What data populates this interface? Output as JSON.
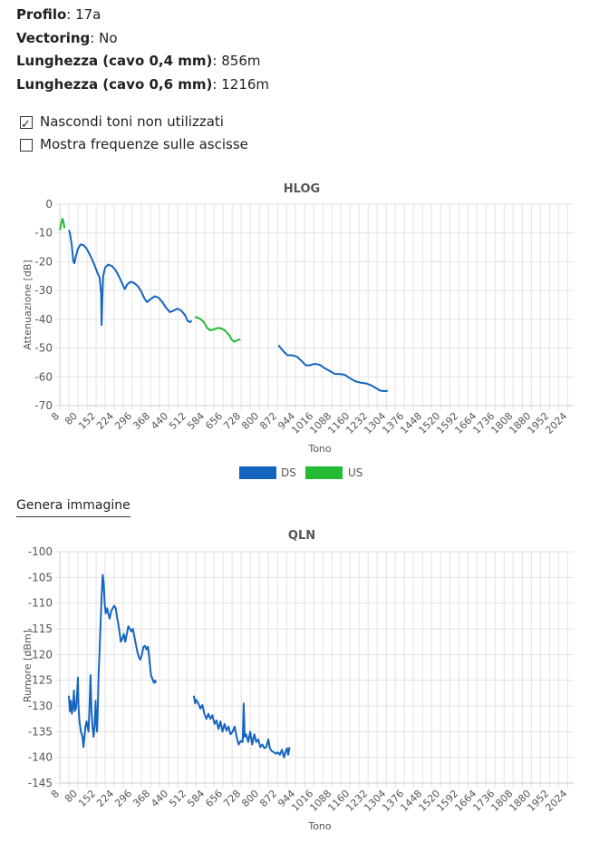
{
  "info": [
    {
      "label": "Profilo",
      "value": "17a"
    },
    {
      "label": "Vectoring",
      "value": "No"
    },
    {
      "label": "Lunghezza (cavo 0,4 mm)",
      "value": "856m"
    },
    {
      "label": "Lunghezza (cavo 0,6 mm)",
      "value": "1216m"
    }
  ],
  "options": [
    {
      "label": "Nascondi toni non utilizzati",
      "checked": true
    },
    {
      "label": "Mostra frequenze sulle ascisse",
      "checked": false
    }
  ],
  "generate_button": "Genera immagine",
  "chart_data": [
    {
      "type": "line",
      "title": "HLOG",
      "xlabel": "Tono",
      "ylabel": "Attenuazione [dB]",
      "xlim": [
        8,
        2048
      ],
      "ylim": [
        -70,
        0
      ],
      "xticks": [
        "8",
        "80",
        "152",
        "224",
        "296",
        "368",
        "440",
        "512",
        "584",
        "656",
        "728",
        "800",
        "872",
        "944",
        "1016",
        "1088",
        "1160",
        "1232",
        "1304",
        "1376",
        "1448",
        "1520",
        "1592",
        "1664",
        "1736",
        "1808",
        "1880",
        "1952",
        "2024"
      ],
      "yticks": [
        "0",
        "-10",
        "-20",
        "-30",
        "-40",
        "-50",
        "-60",
        "-70"
      ],
      "grid": true,
      "legend": "bottom",
      "series": [
        {
          "name": "DS",
          "color": "#1565c0",
          "segments": [
            [
              [
                44,
                -9
              ],
              [
                48,
                -10
              ],
              [
                55,
                -14
              ],
              [
                62,
                -20
              ],
              [
                66,
                -20.5
              ],
              [
                72,
                -18
              ],
              [
                80,
                -15.5
              ],
              [
                90,
                -14
              ],
              [
                102,
                -14.2
              ],
              [
                115,
                -15.5
              ],
              [
                130,
                -18
              ],
              [
                145,
                -21
              ],
              [
                158,
                -24
              ],
              [
                166,
                -25.5
              ],
              [
                172,
                -31
              ],
              [
                174,
                -42
              ],
              [
                176,
                -35
              ],
              [
                180,
                -25
              ],
              [
                188,
                -22
              ],
              [
                200,
                -21
              ],
              [
                215,
                -21.5
              ],
              [
                230,
                -23
              ],
              [
                245,
                -25.5
              ],
              [
                258,
                -28
              ],
              [
                266,
                -29.5
              ],
              [
                275,
                -28
              ],
              [
                288,
                -27
              ],
              [
                302,
                -27.3
              ],
              [
                318,
                -28.5
              ],
              [
                332,
                -30.5
              ],
              [
                345,
                -33
              ],
              [
                355,
                -34
              ],
              [
                368,
                -33
              ],
              [
                385,
                -32
              ],
              [
                400,
                -32.5
              ],
              [
                415,
                -34
              ],
              [
                430,
                -36
              ],
              [
                445,
                -37.5
              ],
              [
                460,
                -37
              ],
              [
                475,
                -36.3
              ],
              [
                490,
                -37
              ],
              [
                505,
                -38.5
              ],
              [
                515,
                -40.5
              ],
              [
                525,
                -41
              ],
              [
                532,
                -40.5
              ]
            ],
            [
              [
                876,
                -49
              ],
              [
                885,
                -50
              ],
              [
                900,
                -51.5
              ],
              [
                912,
                -52.5
              ],
              [
                930,
                -52.5
              ],
              [
                950,
                -53
              ],
              [
                968,
                -54.5
              ],
              [
                985,
                -56
              ],
              [
                1000,
                -56
              ],
              [
                1020,
                -55.5
              ],
              [
                1040,
                -55.8
              ],
              [
                1060,
                -57
              ],
              [
                1080,
                -58
              ],
              [
                1100,
                -59
              ],
              [
                1120,
                -59
              ],
              [
                1140,
                -59.3
              ],
              [
                1160,
                -60.5
              ],
              [
                1180,
                -61.5
              ],
              [
                1200,
                -62
              ],
              [
                1225,
                -62.3
              ],
              [
                1245,
                -63
              ],
              [
                1265,
                -64
              ],
              [
                1280,
                -64.8
              ],
              [
                1300,
                -65
              ],
              [
                1310,
                -64.8
              ]
            ]
          ]
        },
        {
          "name": "US",
          "color": "#22bb33",
          "segments": [
            [
              [
                8,
                -9
              ],
              [
                14,
                -6.5
              ],
              [
                18,
                -5
              ],
              [
                22,
                -6
              ],
              [
                26,
                -8
              ],
              [
                30,
                -8
              ]
            ],
            [
              [
                544,
                -39.2
              ],
              [
                555,
                -39.4
              ],
              [
                568,
                -40
              ],
              [
                580,
                -41
              ],
              [
                593,
                -43
              ],
              [
                605,
                -43.8
              ],
              [
                620,
                -43.5
              ],
              [
                635,
                -43
              ],
              [
                650,
                -43.2
              ],
              [
                665,
                -44
              ],
              [
                680,
                -45.5
              ],
              [
                690,
                -47
              ],
              [
                700,
                -47.8
              ],
              [
                715,
                -47.2
              ],
              [
                725,
                -47
              ]
            ]
          ]
        }
      ]
    },
    {
      "type": "line",
      "title": "QLN",
      "xlabel": "Tono",
      "ylabel": "Rumore [dBm]",
      "xlim": [
        8,
        2048
      ],
      "ylim": [
        -145,
        -100
      ],
      "xticks": [
        "8",
        "80",
        "152",
        "224",
        "296",
        "368",
        "440",
        "512",
        "584",
        "656",
        "728",
        "800",
        "872",
        "944",
        "1016",
        "1088",
        "1160",
        "1232",
        "1304",
        "1376",
        "1448",
        "1520",
        "1592",
        "1664",
        "1736",
        "1808",
        "1880",
        "1952",
        "2024"
      ],
      "yticks": [
        "-100",
        "-105",
        "-110",
        "-115",
        "-120",
        "-125",
        "-130",
        "-135",
        "-140",
        "-145"
      ],
      "grid": true,
      "series": [
        {
          "name": "DS",
          "color": "#1565c0",
          "segments": [
            [
              [
                44,
                -128
              ],
              [
                48,
                -131
              ],
              [
                52,
                -129
              ],
              [
                56,
                -131.5
              ],
              [
                60,
                -130
              ],
              [
                64,
                -127
              ],
              [
                67,
                -131
              ],
              [
                72,
                -130.5
              ],
              [
                76,
                -128
              ],
              [
                80,
                -124.5
              ],
              [
                82,
                -130
              ],
              [
                86,
                -133
              ],
              [
                92,
                -135
              ],
              [
                98,
                -136
              ],
              [
                102,
                -138
              ],
              [
                106,
                -136
              ],
              [
                110,
                -134
              ],
              [
                114,
                -133
              ],
              [
                118,
                -134
              ],
              [
                122,
                -135
              ],
              [
                126,
                -130
              ],
              [
                130,
                -124
              ],
              [
                134,
                -131
              ],
              [
                138,
                -134
              ],
              [
                142,
                -136
              ],
              [
                146,
                -134
              ],
              [
                150,
                -129
              ],
              [
                153,
                -133
              ],
              [
                156,
                -135
              ],
              [
                158,
                -132
              ],
              [
                162,
                -124
              ],
              [
                166,
                -119
              ],
              [
                170,
                -114
              ],
              [
                174,
                -109
              ],
              [
                178,
                -104.5
              ],
              [
                182,
                -106
              ],
              [
                186,
                -110
              ],
              [
                190,
                -112
              ],
              [
                196,
                -111
              ],
              [
                200,
                -112
              ],
              [
                206,
                -113
              ],
              [
                212,
                -111.5
              ],
              [
                218,
                -111
              ],
              [
                224,
                -110.5
              ],
              [
                230,
                -111
              ],
              [
                236,
                -113
              ],
              [
                240,
                -114
              ],
              [
                246,
                -116
              ],
              [
                250,
                -117.5
              ],
              [
                256,
                -117
              ],
              [
                262,
                -116
              ],
              [
                268,
                -117.5
              ],
              [
                274,
                -116
              ],
              [
                280,
                -114.5
              ],
              [
                286,
                -115
              ],
              [
                292,
                -115.5
              ],
              [
                298,
                -115
              ],
              [
                304,
                -116.5
              ],
              [
                310,
                -118
              ],
              [
                316,
                -119.5
              ],
              [
                322,
                -120.5
              ],
              [
                328,
                -121
              ],
              [
                334,
                -120
              ],
              [
                340,
                -118.5
              ],
              [
                346,
                -118.3
              ],
              [
                352,
                -119
              ],
              [
                358,
                -118.5
              ],
              [
                364,
                -121
              ],
              [
                370,
                -124
              ],
              [
                376,
                -124.8
              ],
              [
                382,
                -125.5
              ],
              [
                386,
                -125
              ],
              [
                390,
                -125.5
              ]
            ],
            [
              [
                540,
                -128
              ],
              [
                545,
                -129.5
              ],
              [
                550,
                -128.8
              ],
              [
                558,
                -129.5
              ],
              [
                566,
                -130.5
              ],
              [
                574,
                -129.8
              ],
              [
                582,
                -131.5
              ],
              [
                590,
                -132.5
              ],
              [
                598,
                -131.5
              ],
              [
                606,
                -132.5
              ],
              [
                614,
                -131.8
              ],
              [
                622,
                -133.5
              ],
              [
                630,
                -132.8
              ],
              [
                638,
                -134.5
              ],
              [
                646,
                -133
              ],
              [
                654,
                -135
              ],
              [
                662,
                -133.5
              ],
              [
                670,
                -134.8
              ],
              [
                678,
                -134
              ],
              [
                686,
                -135.5
              ],
              [
                694,
                -135
              ],
              [
                702,
                -134
              ],
              [
                710,
                -136
              ],
              [
                718,
                -137.5
              ],
              [
                726,
                -136.8
              ],
              [
                734,
                -137
              ],
              [
                738,
                -129.5
              ],
              [
                742,
                -136
              ],
              [
                748,
                -135.5
              ],
              [
                756,
                -137
              ],
              [
                764,
                -135
              ],
              [
                772,
                -137.5
              ],
              [
                780,
                -135.5
              ],
              [
                788,
                -137
              ],
              [
                796,
                -136.5
              ],
              [
                804,
                -138
              ],
              [
                812,
                -137.5
              ],
              [
                820,
                -138.2
              ],
              [
                828,
                -138
              ],
              [
                836,
                -136.5
              ],
              [
                842,
                -138.2
              ],
              [
                850,
                -138.8
              ],
              [
                858,
                -139
              ],
              [
                866,
                -139.3
              ],
              [
                874,
                -139
              ],
              [
                882,
                -139.5
              ],
              [
                890,
                -138.5
              ],
              [
                898,
                -140
              ],
              [
                904,
                -139
              ],
              [
                910,
                -138.2
              ],
              [
                915,
                -139.5
              ],
              [
                920,
                -138
              ]
            ]
          ]
        }
      ]
    }
  ]
}
